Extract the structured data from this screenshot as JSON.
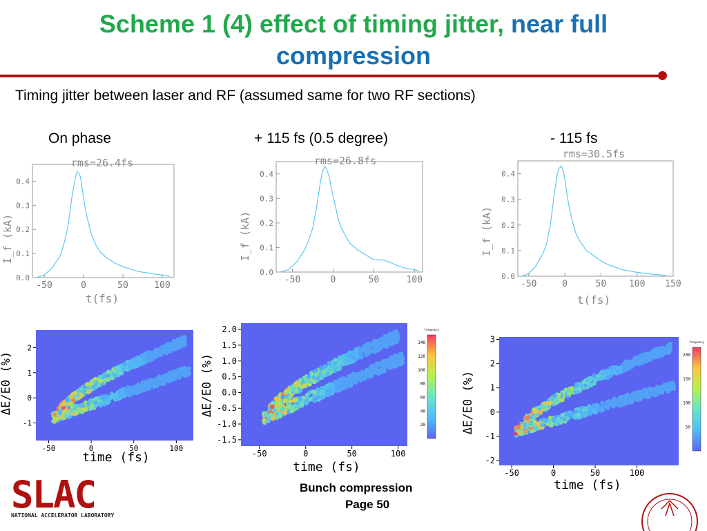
{
  "slide": {
    "title_part1": "Scheme 1 (4) effect of timing jitter,",
    "title_part2": "near full",
    "title_part3": "compression",
    "subtitle": "Timing jitter between laser and RF (assumed same for two RF sections)",
    "col_labels": [
      "On phase",
      "+ 115 fs (0.5 degree)",
      "- 115 fs"
    ],
    "footer_line1": "Bunch compression",
    "footer_line2": "Page 50",
    "logo_text": "SLAC",
    "logo_sub": "NATIONAL ACCELERATOR LABORATORY",
    "accent_green": "#22a84a",
    "accent_blue": "#1a6fb0",
    "rule_color": "#b01010"
  },
  "chart_data": [
    {
      "type": "line",
      "title": "rms=26.4fs",
      "xlabel": "t(fs)",
      "ylabel": "I_f (kA)",
      "xlim": [
        -65,
        115
      ],
      "ylim": [
        0,
        0.47
      ],
      "xticks": [
        -50,
        0,
        50,
        100
      ],
      "yticks": [
        0.0,
        0.1,
        0.2,
        0.3,
        0.4
      ],
      "color": "#5ec8f0",
      "x": [
        -60,
        -50,
        -40,
        -30,
        -25,
        -20,
        -15,
        -10,
        -8,
        -5,
        -3,
        0,
        3,
        6,
        10,
        15,
        20,
        30,
        40,
        50,
        60,
        70,
        80,
        90,
        100,
        110
      ],
      "y": [
        0.0,
        0.01,
        0.04,
        0.09,
        0.14,
        0.21,
        0.33,
        0.42,
        0.44,
        0.43,
        0.4,
        0.33,
        0.27,
        0.23,
        0.18,
        0.14,
        0.11,
        0.08,
        0.06,
        0.045,
        0.035,
        0.025,
        0.02,
        0.015,
        0.01,
        0.005
      ]
    },
    {
      "type": "line",
      "title": "rms=26.8fs",
      "xlabel": "",
      "ylabel": "I_f (kA)",
      "xlim": [
        -70,
        110
      ],
      "ylim": [
        0,
        0.45
      ],
      "xticks": [
        -50,
        0,
        50,
        100
      ],
      "yticks": [
        0.0,
        0.1,
        0.2,
        0.3,
        0.4
      ],
      "color": "#5ec8f0",
      "x": [
        -65,
        -55,
        -45,
        -35,
        -30,
        -25,
        -20,
        -16,
        -13,
        -10,
        -8,
        -5,
        -2,
        2,
        6,
        10,
        15,
        20,
        30,
        40,
        50,
        60,
        70,
        80,
        90,
        100,
        105
      ],
      "y": [
        0.0,
        0.01,
        0.04,
        0.09,
        0.13,
        0.18,
        0.27,
        0.36,
        0.41,
        0.43,
        0.42,
        0.39,
        0.34,
        0.28,
        0.22,
        0.18,
        0.15,
        0.12,
        0.09,
        0.07,
        0.05,
        0.05,
        0.04,
        0.025,
        0.015,
        0.01,
        0.005
      ]
    },
    {
      "type": "line",
      "title": "rms=30.5fs",
      "xlabel": "t(fs)",
      "ylabel": "I_f (kA)",
      "xlim": [
        -65,
        150
      ],
      "ylim": [
        0,
        0.45
      ],
      "xticks": [
        -50,
        0,
        50,
        100,
        150
      ],
      "yticks": [
        0.0,
        0.1,
        0.2,
        0.3,
        0.4
      ],
      "color": "#5ec8f0",
      "x": [
        -60,
        -50,
        -40,
        -30,
        -25,
        -20,
        -15,
        -11,
        -8,
        -5,
        -2,
        0,
        3,
        6,
        10,
        15,
        20,
        30,
        40,
        50,
        60,
        70,
        80,
        100,
        120,
        140
      ],
      "y": [
        0.0,
        0.01,
        0.04,
        0.09,
        0.13,
        0.2,
        0.31,
        0.39,
        0.42,
        0.43,
        0.41,
        0.38,
        0.32,
        0.27,
        0.22,
        0.17,
        0.14,
        0.1,
        0.08,
        0.06,
        0.045,
        0.035,
        0.025,
        0.015,
        0.008,
        0.003
      ]
    },
    {
      "type": "heatmap",
      "xlabel": "time (fs)",
      "ylabel": "ΔE/E0 (%)",
      "xlim": [
        -65,
        120
      ],
      "ylim": [
        -1.7,
        2.7
      ],
      "xticks": [
        -50,
        0,
        50,
        100
      ],
      "yticks": [
        -1,
        0,
        1,
        2
      ]
    },
    {
      "type": "heatmap",
      "xlabel": "time (fs)",
      "ylabel": "ΔE/E0 (%)",
      "xlim": [
        -70,
        110
      ],
      "ylim": [
        -1.7,
        2.2
      ],
      "xticks": [
        -50,
        0,
        50,
        100
      ],
      "yticks": [
        -1.5,
        -1.0,
        -0.5,
        0.0,
        0.5,
        1.0,
        1.5,
        2.0
      ],
      "colorbar_label": "frequency",
      "colorbar_ticks": [
        20,
        40,
        60,
        80,
        100,
        120,
        140
      ]
    },
    {
      "type": "heatmap",
      "xlabel": "time (fs)",
      "ylabel": "ΔE/E0 (%)",
      "xlim": [
        -65,
        150
      ],
      "ylim": [
        -2.2,
        3.1
      ],
      "xticks": [
        -50,
        0,
        50,
        100
      ],
      "yticks": [
        -2,
        -1,
        0,
        1,
        2,
        3
      ],
      "colorbar_label": "frequency",
      "colorbar_ticks": [
        50,
        100,
        150,
        200
      ]
    }
  ]
}
